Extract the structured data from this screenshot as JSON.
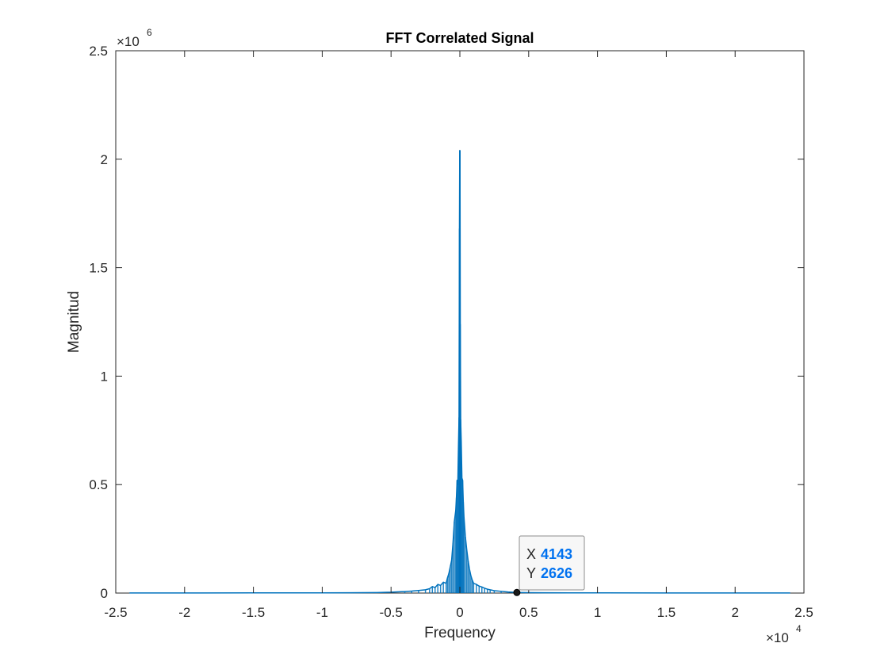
{
  "chart_data": {
    "type": "line",
    "title": "FFT Correlated Signal",
    "xlabel": "Frequency",
    "ylabel": "Magnitud",
    "xlim": [
      -25000,
      25000
    ],
    "ylim": [
      0,
      2500000
    ],
    "x_exponent_label": "×10",
    "x_exponent_power": "4",
    "y_exponent_label": "×10",
    "y_exponent_power": "6",
    "x_ticks": [
      -25000,
      -20000,
      -15000,
      -10000,
      -5000,
      0,
      5000,
      10000,
      15000,
      20000,
      25000
    ],
    "x_tick_labels": [
      "-2.5",
      "-2",
      "-1.5",
      "-1",
      "-0.5",
      "0",
      "0.5",
      "1",
      "1.5",
      "2",
      "2.5"
    ],
    "y_ticks": [
      0,
      500000,
      1000000,
      1500000,
      2000000,
      2500000
    ],
    "y_tick_labels": [
      "0",
      "0.5",
      "1",
      "1.5",
      "2",
      "2.5"
    ],
    "grid": false,
    "series_color": "#0072BD",
    "series": [
      {
        "x": [
          -24000,
          -20000,
          -15000,
          -10000,
          -8000,
          -6000,
          -5000,
          -4000,
          -3500,
          -3000,
          -2500,
          -2200,
          -2000,
          -1800,
          -1600,
          -1400,
          -1200,
          -1000,
          -900,
          -800,
          -700,
          -600,
          -500,
          -400,
          -300,
          -250,
          -200,
          -150,
          -100,
          -60,
          -30,
          -10,
          0,
          10,
          30,
          60,
          100,
          150,
          200,
          250,
          300,
          400,
          500,
          600,
          700,
          800,
          900,
          1000,
          1200,
          1400,
          1600,
          1800,
          2000,
          2200,
          2500,
          3000,
          3500,
          4143,
          5000,
          6000,
          8000,
          10000,
          15000,
          20000,
          24000
        ],
        "y": [
          300,
          500,
          700,
          900,
          1500,
          2500,
          4000,
          7000,
          9000,
          12000,
          15000,
          20000,
          30000,
          25000,
          40000,
          35000,
          50000,
          45000,
          70000,
          90000,
          120000,
          150000,
          230000,
          330000,
          380000,
          440000,
          520000,
          500000,
          680000,
          810000,
          1680000,
          2040000,
          1690000,
          2040000,
          1240000,
          800000,
          700000,
          530000,
          520000,
          420000,
          350000,
          260000,
          200000,
          150000,
          110000,
          80000,
          60000,
          45000,
          40000,
          32000,
          28000,
          22000,
          18000,
          15000,
          11000,
          8000,
          5000,
          2626,
          2000,
          1500,
          1000,
          800,
          600,
          400,
          300
        ]
      }
    ]
  },
  "datatip": {
    "x_label": "X",
    "x_value": "4143",
    "y_label": "Y",
    "y_value": "2626",
    "x": 4143,
    "y": 2626
  }
}
